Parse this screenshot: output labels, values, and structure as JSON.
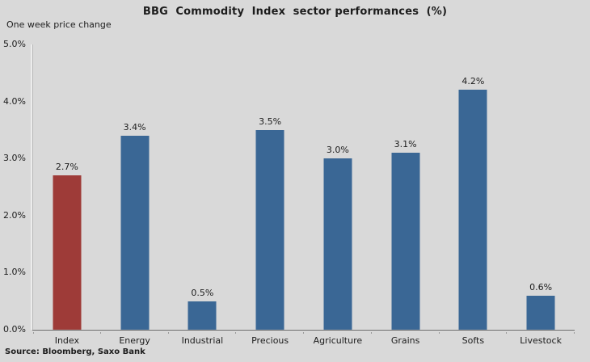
{
  "title": "BBG  Commodity  Index  sector performances  (%)",
  "source": "Source: Bloomberg, Saxo Bank",
  "colors": {
    "background": "#D9D9D9",
    "axis_line": "#9a9a9a",
    "axis_highlight": "#efefef",
    "text": "#1c1c1c",
    "bar_blue": "#3A6795",
    "bar_red": "#9E3B38"
  },
  "chart_data": {
    "type": "bar",
    "title": "BBG  Commodity  Index  sector performances  (%)",
    "ylabel": "One week price change",
    "xlabel": "",
    "categories": [
      "Index",
      "Energy",
      "Industrial",
      "Precious",
      "Agriculture",
      "Grains",
      "Softs",
      "Livestock"
    ],
    "values": [
      2.7,
      3.4,
      0.5,
      3.5,
      3.0,
      3.1,
      4.2,
      0.6
    ],
    "value_labels": [
      "2.7%",
      "3.4%",
      "0.5%",
      "3.5%",
      "3.0%",
      "3.1%",
      "4.2%",
      "0.6%"
    ],
    "bar_colors": [
      "#9E3B38",
      "#3A6795",
      "#3A6795",
      "#3A6795",
      "#3A6795",
      "#3A6795",
      "#3A6795",
      "#3A6795"
    ],
    "ylim": [
      0,
      5
    ],
    "y_ticks": [
      "0.0%",
      "1.0%",
      "2.0%",
      "3.0%",
      "4.0%",
      "5.0%"
    ],
    "grid": false,
    "legend": false,
    "source_note": "Source: Bloomberg, Saxo Bank"
  }
}
